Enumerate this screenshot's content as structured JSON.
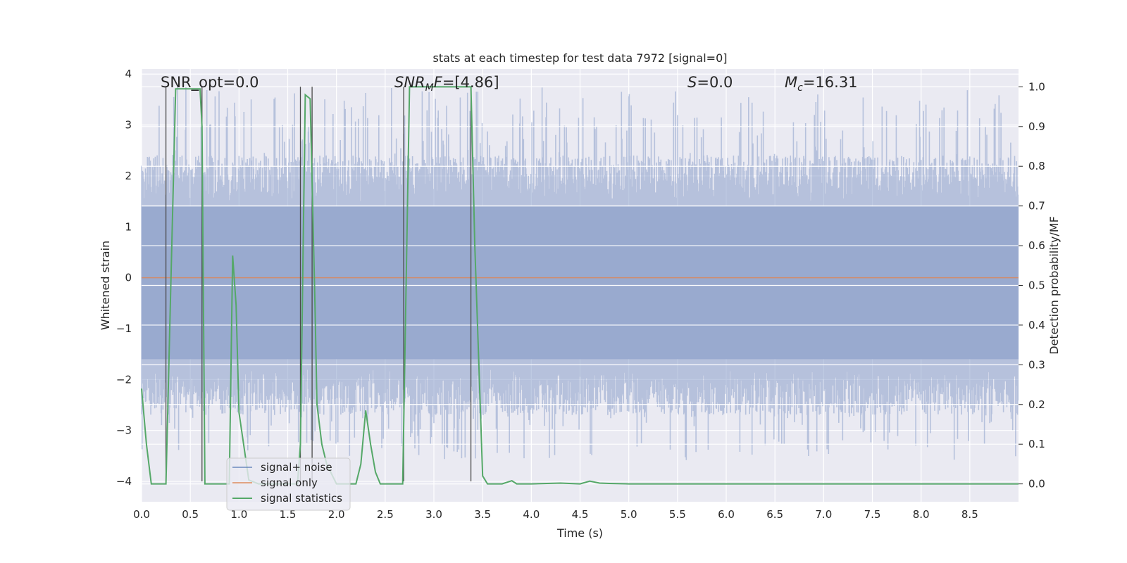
{
  "chart_data": {
    "type": "line",
    "title": "stats at each timestep for test data 7972 [signal=0]",
    "xlabel": "Time (s)",
    "ylabel": "Whitened strain",
    "ylabel_right": "Detection probability/MF",
    "xlim": [
      0.0,
      9.0
    ],
    "ylim": [
      -4.4,
      4.1
    ],
    "ylim_right": [
      -0.045,
      1.045
    ],
    "x_ticks": [
      0.0,
      0.5,
      1.0,
      1.5,
      2.0,
      2.5,
      3.0,
      3.5,
      4.0,
      4.5,
      5.0,
      5.5,
      6.0,
      6.5,
      7.0,
      7.5,
      8.0,
      8.5
    ],
    "x_tick_labels": [
      "0.0",
      "0.5",
      "1.0",
      "1.5",
      "2.0",
      "2.5",
      "3.0",
      "3.5",
      "4.0",
      "4.5",
      "5.0",
      "5.5",
      "6.0",
      "6.5",
      "7.0",
      "7.5",
      "8.0",
      "8.5"
    ],
    "y_ticks": [
      4,
      3,
      2,
      1,
      0,
      -1,
      -2,
      -3,
      -4
    ],
    "y_tick_labels": [
      "4",
      "3",
      "2",
      "1",
      "0",
      "−1",
      "−2",
      "−3",
      "−4"
    ],
    "y2_ticks": [
      1.0,
      0.9,
      0.8,
      0.7,
      0.6,
      0.5,
      0.4,
      0.3,
      0.2,
      0.1,
      0.0
    ],
    "y2_tick_labels": [
      "1.0",
      "0.9",
      "0.8",
      "0.7",
      "0.6",
      "0.5",
      "0.4",
      "0.3",
      "0.2",
      "0.1",
      "0.0"
    ],
    "annotations": {
      "snr_opt": "SNR_opt=0.0",
      "snr_mf_sym": "SNR",
      "snr_mf_sub": "M",
      "snr_mf_f": "F",
      "snr_mf_val": "=[4.86]",
      "s_sym": "S",
      "s_val": "=0.0",
      "mc_sym": "M",
      "mc_sub": "c",
      "mc_val": "=16.31"
    },
    "vertical_lines_x": [
      0.25,
      0.62,
      1.63,
      1.75,
      2.69,
      3.38
    ],
    "series": [
      {
        "name": "signal+ noise",
        "color": "#4c72b0",
        "opacity": 0.5,
        "duration": 9.0,
        "samples": 1800,
        "typical_range": [
          -1.8,
          1.5
        ],
        "peak_range": [
          -3.6,
          3.75
        ]
      },
      {
        "name": "signal only",
        "color": "#dd8452",
        "value": 0.0
      },
      {
        "name": "signal statistics",
        "color": "#55a868",
        "axis": "right",
        "x": [
          0.0,
          0.05,
          0.1,
          0.2,
          0.25,
          0.3,
          0.35,
          0.6,
          0.62,
          0.65,
          0.7,
          0.8,
          0.9,
          0.935,
          0.97,
          1.0,
          1.1,
          1.2,
          1.3,
          1.5,
          1.6,
          1.63,
          1.68,
          1.73,
          1.78,
          1.8,
          1.85,
          1.9,
          2.0,
          2.1,
          2.2,
          2.25,
          2.3,
          2.35,
          2.4,
          2.45,
          2.5,
          2.6,
          2.68,
          2.75,
          2.8,
          3.0,
          3.2,
          3.38,
          3.42,
          3.5,
          3.55,
          3.6,
          3.7,
          3.8,
          3.85,
          3.9,
          4.0,
          4.3,
          4.5,
          4.6,
          4.7,
          4.8,
          5.0,
          6.0,
          7.0,
          8.0,
          9.0
        ],
        "y": [
          0.24,
          0.1,
          0.0,
          0.0,
          0.0,
          0.5,
          0.995,
          0.995,
          0.9,
          0.0,
          0.0,
          0.0,
          0.0,
          0.575,
          0.45,
          0.18,
          0.01,
          0.0,
          0.0,
          0.0,
          0.0,
          0.1,
          0.98,
          0.97,
          0.45,
          0.2,
          0.1,
          0.05,
          0.0,
          0.0,
          0.0,
          0.05,
          0.185,
          0.1,
          0.03,
          0.0,
          0.0,
          0.0,
          0.0,
          1.0,
          1.0,
          1.0,
          1.0,
          1.0,
          0.6,
          0.02,
          0.0,
          0.0,
          0.0,
          0.008,
          0.0,
          0.0,
          0.0,
          0.002,
          0.0,
          0.007,
          0.002,
          0.001,
          0.0,
          0.0,
          0.0,
          0.0,
          0.0
        ]
      }
    ],
    "legend": {
      "placement": "lower-left",
      "entries": [
        "signal+ noise",
        "signal only",
        "signal statistics"
      ]
    }
  }
}
